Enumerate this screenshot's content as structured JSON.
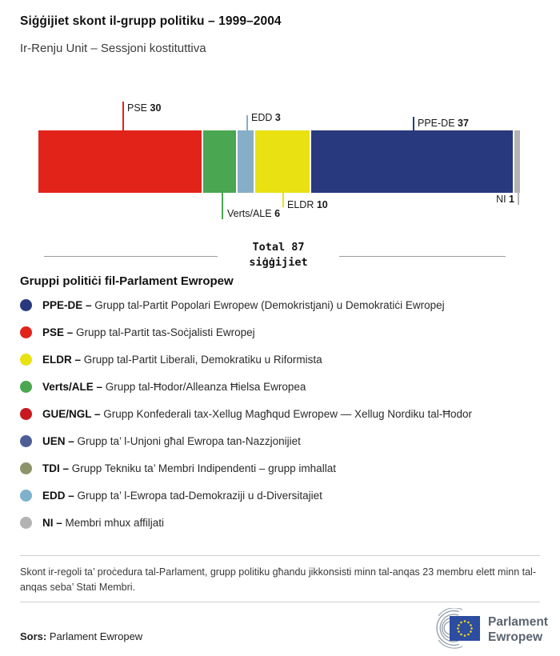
{
  "title": "Siġġijiet skont il-grupp politiku – 1999–2004",
  "subtitle": "Ir-Renju Unit – Sessjoni kostituttiva",
  "chart_data": {
    "type": "bar",
    "variant": "horizontal-stacked",
    "total_seats": 87,
    "total_label_line1": "Total 87",
    "total_label_line2": "siġġijiet",
    "segments": [
      {
        "name": "PSE",
        "value": 30,
        "color": "#e2231a",
        "label_position": "top"
      },
      {
        "name": "Verts/ALE",
        "value": 6,
        "color": "#4aa651",
        "label_position": "bottom"
      },
      {
        "name": "EDD",
        "value": 3,
        "color": "#86aec6",
        "label_position": "top"
      },
      {
        "name": "ELDR",
        "value": 10,
        "color": "#e9e112",
        "label_position": "bottom"
      },
      {
        "name": "PPE-DE",
        "value": 37,
        "color": "#283a7d",
        "label_position": "top"
      },
      {
        "name": "NI",
        "value": 1,
        "color": "#b3b3b3",
        "label_position": "bottom"
      }
    ]
  },
  "legend": {
    "heading": "Gruppi politiċi fil-Parlament Ewropew",
    "items": [
      {
        "abbr": "PPE-DE –",
        "desc": "Grupp tal-Partit Popolari Ewropew (Demokristjani) u Demokratiċi Ewropej",
        "color": "#283a7d"
      },
      {
        "abbr": "PSE –",
        "desc": "Grupp tal-Partit tas-Soċjalisti Ewropej",
        "color": "#e2231a"
      },
      {
        "abbr": "ELDR –",
        "desc": "Grupp tal-Partit Liberali, Demokratiku u Riformista",
        "color": "#e9e112"
      },
      {
        "abbr": "Verts/ALE –",
        "desc": "Grupp tal-Ħodor/Alleanza Ħielsa Ewropea",
        "color": "#4aa651"
      },
      {
        "abbr": "GUE/NGL –",
        "desc": "Grupp Konfederali tax-Xellug Magħqud Ewropew — Xellug Nordiku tal-Ħodor",
        "color": "#c7191f"
      },
      {
        "abbr": "UEN –",
        "desc": "Grupp ta’ l-Unjoni għal Ewropa tan-Nazzjonijiet",
        "color": "#4d5e96"
      },
      {
        "abbr": "TDI –",
        "desc": "Grupp Tekniku ta’ Membri Indipendenti – grupp imhallat",
        "color": "#8e9469"
      },
      {
        "abbr": "EDD –",
        "desc": "Grupp ta’ l-Ewropa tad-Demokraziji u d-Diversitajiet",
        "color": "#7fb1cd"
      },
      {
        "abbr": "NI –",
        "desc": "Membri mhux affiljati",
        "color": "#b3b3b3"
      }
    ]
  },
  "footnote": "Skont ir-regoli ta’ proċedura tal-Parlament, grupp politiku għandu jikkonsisti minn tal-anqas 23 membru elett minn tal-anqas seba’ Stati Membri.",
  "source": {
    "label": "Sors:",
    "value": "Parlament Ewropew"
  },
  "logo": {
    "line1": "Parlament",
    "line2": "Ewropew"
  }
}
